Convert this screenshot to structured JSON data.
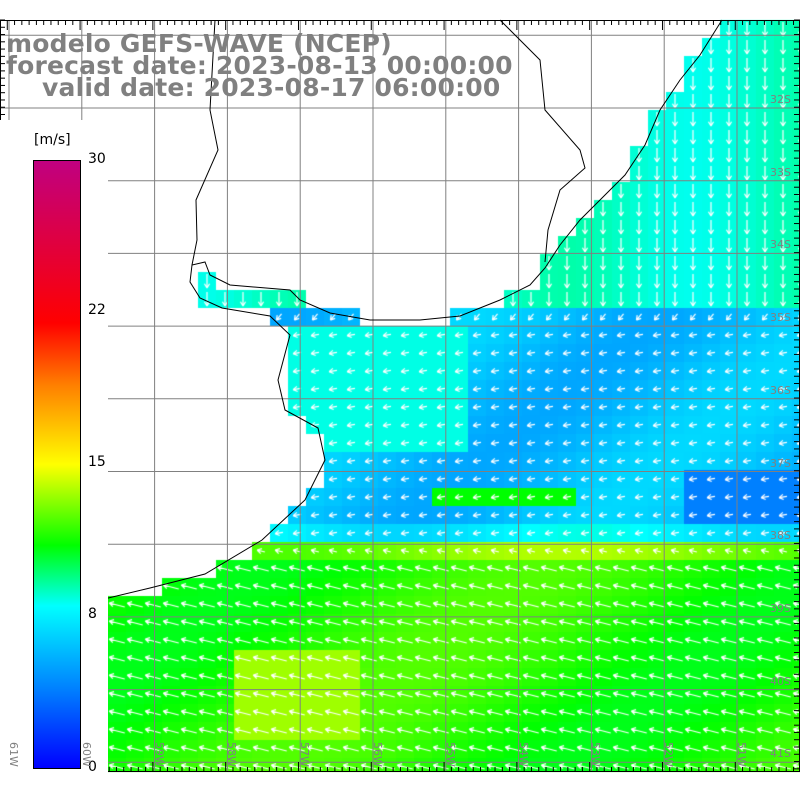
{
  "title": {
    "model": "modelo GEFS-WAVE (NCEP)",
    "forecast": "forecast date: 2023-08-13 00:00:00",
    "valid": "valid date: 2023-08-17 06:00:00"
  },
  "colorbar": {
    "units": "[m/s]",
    "ticks": [
      "30",
      "22",
      "15",
      "8",
      "0"
    ],
    "tick_values": [
      30,
      22,
      15,
      8,
      0
    ],
    "colors": [
      "#0000ff",
      "#0080ff",
      "#00ffff",
      "#00ff00",
      "#ffff00",
      "#ff8000",
      "#ff0000",
      "#c00080"
    ]
  },
  "lat_labels": [
    "32S",
    "33S",
    "34S",
    "35S",
    "36S",
    "37S",
    "38S",
    "39S",
    "40S",
    "41S"
  ],
  "lon_labels": [
    "61W",
    "60W",
    "59W",
    "58W",
    "57W",
    "56W",
    "55W",
    "54W",
    "53W",
    "52W",
    "51W"
  ],
  "land_color": "#ffffff",
  "grid_color": "#808080"
}
